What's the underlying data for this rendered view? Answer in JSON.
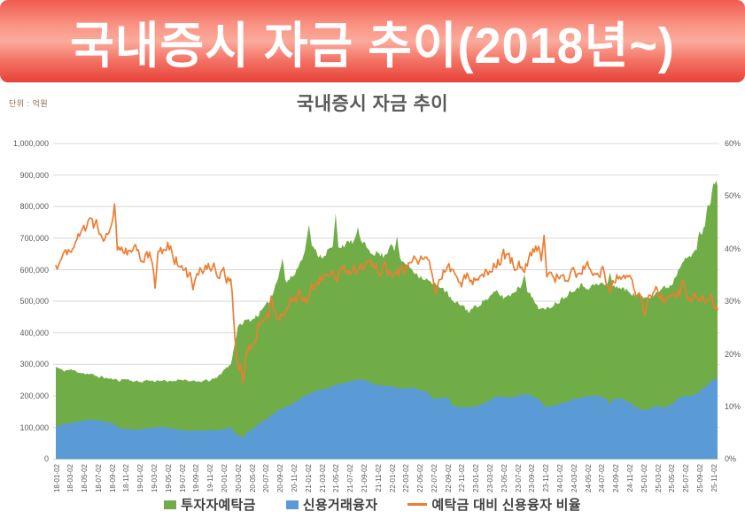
{
  "banner": {
    "title": "국내증시 자금 추이(2018년~)",
    "text_color": "#ffffff",
    "gradient": [
      "#f15b50",
      "#f99384",
      "#fbab9c",
      "#f37163",
      "#e74138"
    ]
  },
  "chart": {
    "title": "국내증시 자금 추이",
    "unit_label": "단위 : 억원"
  },
  "legend": {
    "items": [
      {
        "label": "투자자예탁금",
        "marker": "square",
        "color": "#70ad47"
      },
      {
        "label": "신용거래융자",
        "marker": "square",
        "color": "#5b9bd5"
      },
      {
        "label": "예탁금 대비 신용융자 비율",
        "marker": "line",
        "color": "#ed7d31"
      }
    ]
  },
  "chart_data": {
    "type": "area",
    "title": "국내증시 자금 추이",
    "unit": "억원",
    "grid": true,
    "legend_position": "bottom",
    "start_month": "2018-01",
    "end_month": "2025-11",
    "y_left": {
      "min": 0,
      "max": 1000000,
      "tick_step": 100000,
      "tick_labels": [
        "0",
        "100,000",
        "200,000",
        "300,000",
        "400,000",
        "500,000",
        "600,000",
        "700,000",
        "800,000",
        "900,000",
        "1,000,000"
      ]
    },
    "y_right": {
      "min": 0,
      "max": 60,
      "tick_step": 10,
      "unit": "%",
      "tick_labels": [
        "0%",
        "10%",
        "20%",
        "30%",
        "40%",
        "50%",
        "60%"
      ]
    },
    "x_tick_labels": [
      "18-01-02",
      "18-03-02",
      "18-05-02",
      "18-07-02",
      "18-09-02",
      "18-11-02",
      "19-01-02",
      "19-03-02",
      "19-05-02",
      "19-07-02",
      "19-09-02",
      "19-11-02",
      "20-01-02",
      "20-03-02",
      "20-05-02",
      "20-07-02",
      "20-09-02",
      "20-11-02",
      "21-01-02",
      "21-03-02",
      "21-05-02",
      "21-07-02",
      "21-09-02",
      "21-11-02",
      "22-01-02",
      "22-03-02",
      "22-05-02",
      "22-07-02",
      "22-09-02",
      "22-11-02",
      "23-01-02",
      "23-03-02",
      "23-05-02",
      "23-07-02",
      "23-09-02",
      "23-11-02",
      "24-01-02",
      "24-03-02",
      "24-05-02",
      "24-07-02",
      "24-09-02",
      "24-11-02",
      "25-01-02",
      "25-03-02",
      "25-05-02",
      "25-07-02",
      "25-09-02",
      "25-11-02"
    ],
    "series": [
      {
        "name": "투자자예탁금",
        "type": "area",
        "axis": "left",
        "color": "#70ad47",
        "monthly_values": [
          292000,
          280000,
          283000,
          278000,
          272000,
          268000,
          262000,
          258000,
          253000,
          250000,
          254000,
          248000,
          244000,
          250000,
          247000,
          250000,
          244000,
          249000,
          254000,
          248000,
          244000,
          247000,
          250000,
          256000,
          282000,
          300000,
          415000,
          438000,
          442000,
          460000,
          482000,
          522000,
          600000,
          562000,
          582000,
          625000,
          698000,
          658000,
          642000,
          662000,
          672000,
          680000,
          682000,
          700000,
          678000,
          660000,
          652000,
          642000,
          690000,
          632000,
          620000,
          600000,
          582000,
          568000,
          552000,
          550000,
          522000,
          492000,
          490000,
          468000,
          482000,
          500000,
          512000,
          530000,
          512000,
          520000,
          542000,
          558000,
          512000,
          482000,
          470000,
          490000,
          502000,
          520000,
          540000,
          550000,
          546000,
          550000,
          556000,
          546000,
          550000,
          540000,
          530000,
          520000,
          510000,
          520000,
          530000,
          542000,
          552000,
          600000,
          650000,
          642000,
          680000,
          760000,
          862000
        ],
        "spikes": [
          [
            32.4,
            637000
          ],
          [
            36.25,
            742000
          ],
          [
            39.92,
            778000
          ],
          [
            43.3,
            735000
          ],
          [
            48.85,
            706000
          ],
          [
            66.9,
            585000
          ],
          [
            79.15,
            592000
          ],
          [
            92.05,
            722000
          ],
          [
            93.3,
            806000
          ],
          [
            94.45,
            883000
          ]
        ]
      },
      {
        "name": "신용거래융자",
        "type": "area",
        "axis": "left",
        "color": "#5b9bd5",
        "monthly_values": [
          104000,
          110000,
          115000,
          118000,
          122000,
          125000,
          123000,
          118000,
          114000,
          100000,
          95000,
          94000,
          94000,
          98000,
          100000,
          102000,
          100000,
          95000,
          92000,
          88000,
          91000,
          90000,
          92000,
          92000,
          95000,
          100000,
          74000,
          82000,
          92000,
          112000,
          126000,
          142000,
          156000,
          166000,
          176000,
          192000,
          206000,
          216000,
          221000,
          226000,
          235000,
          240000,
          246000,
          252000,
          250000,
          244000,
          236000,
          230000,
          230000,
          226000,
          225000,
          225000,
          220000,
          214000,
          191000,
          195000,
          194000,
          166000,
          165000,
          164000,
          166000,
          176000,
          186000,
          200000,
          196000,
          195000,
          200000,
          205000,
          202000,
          190000,
          166000,
          168000,
          175000,
          180000,
          190000,
          195000,
          199000,
          200000,
          200000,
          186000,
          190000,
          190000,
          180000,
          163000,
          151000,
          160000,
          168000,
          164000,
          172000,
          194000,
          200000,
          201000,
          215000,
          231000,
          252000
        ],
        "spikes": [
          [
            26.8,
            64000
          ],
          [
            79.2,
            171000
          ],
          [
            83.9,
            157000
          ]
        ]
      },
      {
        "name": "예탁금 대비 신용융자 비율",
        "type": "line",
        "axis": "right",
        "color": "#ed7d31",
        "monthly_values": [
          36.5,
          38.5,
          40.5,
          42,
          43.5,
          45,
          44,
          43,
          44.5,
          40,
          39.5,
          40,
          38.5,
          39.5,
          37.5,
          40,
          40.5,
          38.5,
          36.5,
          34.5,
          36,
          36.5,
          37,
          36,
          35,
          34,
          17,
          19.5,
          21.5,
          24.5,
          26.5,
          27.5,
          27,
          29.5,
          30.5,
          31,
          30,
          33,
          34.5,
          34.5,
          35,
          35.5,
          36,
          36.5,
          37,
          37,
          36.5,
          36,
          34.5,
          35.5,
          36.5,
          37.5,
          38,
          37.5,
          34.5,
          35.5,
          37,
          34,
          33.5,
          35,
          34.5,
          35.5,
          36.5,
          37.5,
          38.5,
          37.5,
          37,
          37,
          39.5,
          40.5,
          35.5,
          34.5,
          35,
          34.5,
          35,
          35.5,
          36.5,
          36.5,
          36,
          34,
          34.5,
          35,
          34,
          31.5,
          29.5,
          31,
          31.5,
          30,
          31,
          32.5,
          31,
          31.5,
          31.5,
          30.5,
          29.5
        ],
        "spikes": [
          [
            8.35,
            48.5
          ],
          [
            14.2,
            32.5
          ],
          [
            19.6,
            32.2
          ],
          [
            26.75,
            14.5
          ],
          [
            30.8,
            31.0
          ],
          [
            54.4,
            31.3
          ],
          [
            69.8,
            42.5
          ],
          [
            79.2,
            31.6
          ],
          [
            84.3,
            27.3
          ],
          [
            89.6,
            34.0
          ]
        ]
      }
    ],
    "colors": {
      "grid": "#d9d9d9",
      "axis_text": "#595959"
    }
  }
}
